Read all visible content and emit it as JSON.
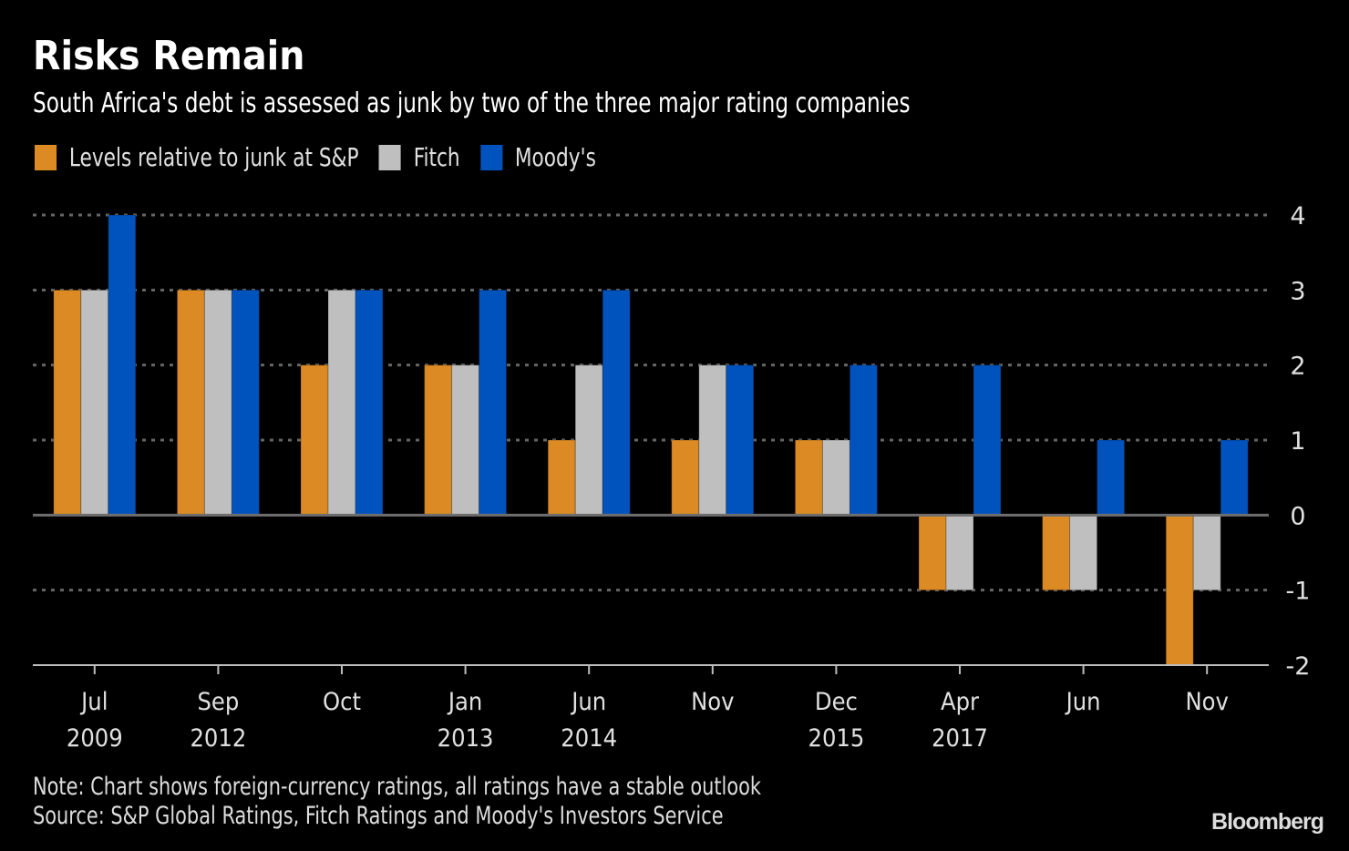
{
  "header": {
    "title": "Risks Remain",
    "subtitle": "South Africa's debt is assessed as junk by two of the three major rating companies"
  },
  "footer": {
    "note": "Note: Chart shows foreign-currency ratings, all ratings have a stable outlook",
    "source": "Source: S&P Global Ratings, Fitch Ratings and Moody's Investors Service",
    "brand": "Bloomberg"
  },
  "chart_data": {
    "type": "bar",
    "title": "Risks Remain",
    "subtitle": "South Africa's debt is assessed as junk by two of the three major rating companies",
    "xlabel": "",
    "ylabel": "",
    "categories": [
      {
        "month": "Jul",
        "year": "2009"
      },
      {
        "month": "Sep",
        "year": "2012"
      },
      {
        "month": "Oct",
        "year": ""
      },
      {
        "month": "Jan",
        "year": "2013"
      },
      {
        "month": "Jun",
        "year": "2014"
      },
      {
        "month": "Nov",
        "year": ""
      },
      {
        "month": "Dec",
        "year": "2015"
      },
      {
        "month": "Apr",
        "year": "2017"
      },
      {
        "month": "Jun",
        "year": ""
      },
      {
        "month": "Nov",
        "year": ""
      }
    ],
    "series": [
      {
        "name": "Levels relative to junk at S&P",
        "color": "#DB8A24",
        "values": [
          3,
          3,
          2,
          2,
          1,
          1,
          1,
          -1,
          -1,
          -2
        ]
      },
      {
        "name": "Fitch",
        "color": "#BFBFBF",
        "values": [
          3,
          3,
          3,
          2,
          2,
          2,
          1,
          -1,
          -1,
          -1
        ]
      },
      {
        "name": "Moody's",
        "color": "#0053BC",
        "values": [
          4,
          3,
          3,
          3,
          3,
          2,
          2,
          2,
          1,
          1
        ]
      }
    ],
    "ylim": [
      -2,
      4
    ],
    "yticks": [
      4,
      3,
      2,
      1,
      0,
      -1,
      -2
    ],
    "yaxis_position": "right",
    "grid": true,
    "legend_position": "top-left"
  }
}
